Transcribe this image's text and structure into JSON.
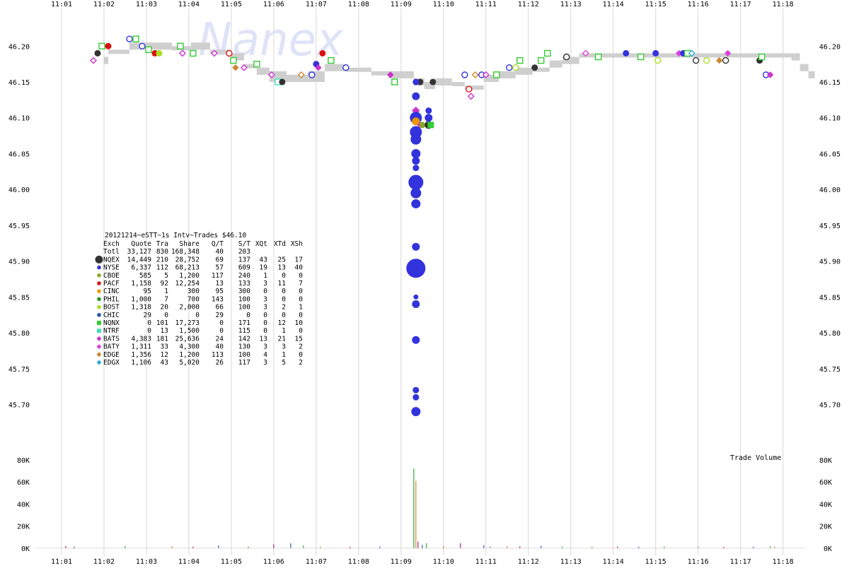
{
  "watermark": "Nanex",
  "chart_data": {
    "type": "scatter",
    "title": "20121214~eSTT~1s Intv~Trades $46.10",
    "x_ticks": [
      "11:01",
      "11:02",
      "11:03",
      "11:04",
      "11:05",
      "11:06",
      "11:07",
      "11:08",
      "11:09",
      "11:10",
      "11:11",
      "11:12",
      "11:13",
      "11:14",
      "11:15",
      "11:16",
      "11:17",
      "11:18"
    ],
    "price_ticks": [
      "46.20",
      "46.15",
      "46.10",
      "46.05",
      "46.00",
      "45.95",
      "45.90",
      "45.85",
      "45.80",
      "45.75",
      "45.70"
    ],
    "price_ylim": [
      45.665,
      46.22
    ],
    "volume_ticks": [
      "80K",
      "60K",
      "40K",
      "20K",
      "0K"
    ],
    "volume_ylim": [
      0,
      85000
    ],
    "volume_label": "Trade Volume",
    "grid": true,
    "legend_columns": [
      "Exch",
      "Quote",
      "Tra",
      "Share",
      "Q/T",
      "S/T",
      "XQt",
      "XTd",
      "XSh"
    ],
    "legend_rows": [
      {
        "exch": "Totl",
        "quote": "33,127",
        "tra": "830",
        "share": "168,348",
        "qt": "40",
        "st": "203",
        "xqt": "",
        "xtd": "",
        "xsh": "",
        "color": "",
        "shape": "none"
      },
      {
        "exch": "NQEX",
        "quote": "14,449",
        "tra": "210",
        "share": "28,752",
        "qt": "69",
        "st": "137",
        "xqt": "43",
        "xtd": "25",
        "xsh": "17",
        "color": "#333333",
        "shape": "circle-large"
      },
      {
        "exch": "NYSE",
        "quote": "6,337",
        "tra": "112",
        "share": "68,213",
        "qt": "57",
        "st": "609",
        "xqt": "19",
        "xtd": "13",
        "xsh": "40",
        "color": "#3333dd",
        "shape": "circle"
      },
      {
        "exch": "CBOE",
        "quote": "585",
        "tra": "5",
        "share": "1,200",
        "qt": "117",
        "st": "240",
        "xqt": "1",
        "xtd": "0",
        "xsh": "0",
        "color": "#88aa22",
        "shape": "circle"
      },
      {
        "exch": "PACF",
        "quote": "1,158",
        "tra": "92",
        "share": "12,254",
        "qt": "13",
        "st": "133",
        "xqt": "3",
        "xtd": "11",
        "xsh": "7",
        "color": "#dd1111",
        "shape": "circle"
      },
      {
        "exch": "CINC",
        "quote": "95",
        "tra": "1",
        "share": "300",
        "qt": "95",
        "st": "300",
        "xqt": "0",
        "xtd": "0",
        "xsh": "0",
        "color": "#ee9900",
        "shape": "circle"
      },
      {
        "exch": "PHIL",
        "quote": "1,000",
        "tra": "7",
        "share": "700",
        "qt": "143",
        "st": "100",
        "xqt": "3",
        "xtd": "0",
        "xsh": "0",
        "color": "#229922",
        "shape": "circle"
      },
      {
        "exch": "BOST",
        "quote": "1,318",
        "tra": "20",
        "share": "2,000",
        "qt": "66",
        "st": "100",
        "xqt": "3",
        "xtd": "2",
        "xsh": "1",
        "color": "#aadd22",
        "shape": "circle"
      },
      {
        "exch": "CHIC",
        "quote": "29",
        "tra": "0",
        "share": "0",
        "qt": "29",
        "st": "0",
        "xqt": "0",
        "xtd": "0",
        "xsh": "0",
        "color": "#2255aa",
        "shape": "circle"
      },
      {
        "exch": "NQNX",
        "quote": "0",
        "tra": "101",
        "share": "17,273",
        "qt": "0",
        "st": "171",
        "xqt": "0",
        "xtd": "12",
        "xsh": "10",
        "color": "#33cc33",
        "shape": "square"
      },
      {
        "exch": "NTRF",
        "quote": "0",
        "tra": "13",
        "share": "1,500",
        "qt": "0",
        "st": "115",
        "xqt": "0",
        "xtd": "1",
        "xsh": "0",
        "color": "#44ddbb",
        "shape": "square"
      },
      {
        "exch": "BATS",
        "quote": "4,383",
        "tra": "181",
        "share": "25,636",
        "qt": "24",
        "st": "142",
        "xqt": "13",
        "xtd": "21",
        "xsh": "15",
        "color": "#cc33cc",
        "shape": "diamond"
      },
      {
        "exch": "BATY",
        "quote": "1,311",
        "tra": "33",
        "share": "4,300",
        "qt": "40",
        "st": "130",
        "xqt": "3",
        "xtd": "3",
        "xsh": "2",
        "color": "#dd44dd",
        "shape": "diamond"
      },
      {
        "exch": "EDGE",
        "quote": "1,356",
        "tra": "12",
        "share": "1,200",
        "qt": "113",
        "st": "100",
        "xqt": "4",
        "xtd": "1",
        "xsh": "0",
        "color": "#cc8833",
        "shape": "diamond"
      },
      {
        "exch": "EDGX",
        "quote": "1,106",
        "tra": "43",
        "share": "5,020",
        "qt": "26",
        "st": "117",
        "xqt": "3",
        "xtd": "5",
        "xsh": "2",
        "color": "#33aadd",
        "shape": "diamond"
      }
    ],
    "nbbo_band": [
      [
        1.0,
        46.185,
        46.175
      ],
      [
        1.1,
        46.195,
        46.19
      ],
      [
        1.6,
        46.205,
        46.195
      ],
      [
        2.6,
        46.2,
        46.195
      ],
      [
        3.05,
        46.205,
        46.195
      ],
      [
        3.5,
        46.195,
        46.19
      ],
      [
        4.0,
        46.19,
        46.18
      ],
      [
        4.3,
        46.175,
        46.17
      ],
      [
        4.6,
        46.17,
        46.16
      ],
      [
        4.9,
        46.165,
        46.15
      ],
      [
        5.3,
        46.16,
        46.15
      ],
      [
        5.8,
        46.165,
        46.15
      ],
      [
        6.2,
        46.175,
        46.165
      ],
      [
        6.7,
        46.17,
        46.165
      ],
      [
        7.3,
        46.165,
        46.16
      ],
      [
        7.7,
        46.165,
        46.155
      ],
      [
        8.3,
        46.155,
        46.145
      ],
      [
        8.55,
        46.15,
        46.14
      ],
      [
        8.8,
        46.155,
        46.145
      ],
      [
        9.2,
        46.15,
        46.145
      ],
      [
        9.5,
        46.145,
        46.14
      ],
      [
        9.95,
        46.16,
        46.15
      ],
      [
        10.3,
        46.165,
        46.155
      ],
      [
        10.7,
        46.17,
        46.16
      ],
      [
        11.1,
        46.17,
        46.165
      ],
      [
        11.5,
        46.18,
        46.17
      ],
      [
        11.8,
        46.185,
        46.175
      ],
      [
        12.2,
        46.19,
        46.185
      ],
      [
        13.5,
        46.19,
        46.185
      ],
      [
        17.2,
        46.19,
        46.18
      ],
      [
        17.4,
        46.175,
        46.165
      ],
      [
        17.6,
        46.165,
        46.155
      ]
    ],
    "trades": [
      {
        "x": 0.75,
        "y": 46.18,
        "exch": "BATS",
        "open": true
      },
      {
        "x": 0.85,
        "y": 46.19,
        "exch": "NQEX",
        "open": false
      },
      {
        "x": 0.95,
        "y": 46.2,
        "exch": "NQNX",
        "open": true
      },
      {
        "x": 1.1,
        "y": 46.2,
        "exch": "PACF",
        "open": false
      },
      {
        "x": 1.6,
        "y": 46.21,
        "exch": "NYSE",
        "open": true
      },
      {
        "x": 1.75,
        "y": 46.21,
        "exch": "NQNX",
        "open": true
      },
      {
        "x": 1.9,
        "y": 46.2,
        "exch": "NYSE",
        "open": true
      },
      {
        "x": 2.05,
        "y": 46.195,
        "exch": "NQNX",
        "open": true
      },
      {
        "x": 2.2,
        "y": 46.19,
        "exch": "PACF",
        "open": false
      },
      {
        "x": 2.3,
        "y": 46.19,
        "exch": "BOST",
        "open": false
      },
      {
        "x": 2.8,
        "y": 46.2,
        "exch": "NQNX",
        "open": true
      },
      {
        "x": 2.85,
        "y": 46.19,
        "exch": "BATS",
        "open": true
      },
      {
        "x": 3.1,
        "y": 46.19,
        "exch": "NQNX",
        "open": true
      },
      {
        "x": 3.6,
        "y": 46.19,
        "exch": "BATS",
        "open": true
      },
      {
        "x": 3.95,
        "y": 46.19,
        "exch": "PACF",
        "open": true
      },
      {
        "x": 4.05,
        "y": 46.18,
        "exch": "NQNX",
        "open": true
      },
      {
        "x": 4.1,
        "y": 46.17,
        "exch": "EDGE",
        "open": false
      },
      {
        "x": 4.3,
        "y": 46.17,
        "exch": "BATS",
        "open": true
      },
      {
        "x": 4.6,
        "y": 46.175,
        "exch": "NQNX",
        "open": true
      },
      {
        "x": 4.95,
        "y": 46.16,
        "exch": "BATS",
        "open": true
      },
      {
        "x": 5.1,
        "y": 46.15,
        "exch": "NTRF",
        "open": true
      },
      {
        "x": 5.2,
        "y": 46.15,
        "exch": "NQEX",
        "open": false
      },
      {
        "x": 5.65,
        "y": 46.16,
        "exch": "EDGE",
        "open": true
      },
      {
        "x": 5.9,
        "y": 46.16,
        "exch": "NYSE",
        "open": true
      },
      {
        "x": 6.0,
        "y": 46.175,
        "exch": "NYSE",
        "open": false
      },
      {
        "x": 6.05,
        "y": 46.17,
        "exch": "BATS",
        "open": false
      },
      {
        "x": 6.15,
        "y": 46.19,
        "exch": "PACF",
        "open": false
      },
      {
        "x": 6.35,
        "y": 46.18,
        "exch": "NQNX",
        "open": true
      },
      {
        "x": 6.7,
        "y": 46.17,
        "exch": "NYSE",
        "open": true
      },
      {
        "x": 7.75,
        "y": 46.16,
        "exch": "BATS",
        "open": false
      },
      {
        "x": 7.85,
        "y": 46.15,
        "exch": "NQNX",
        "open": true
      },
      {
        "x": 8.45,
        "y": 46.15,
        "exch": "NQEX",
        "open": false
      },
      {
        "x": 8.75,
        "y": 46.15,
        "exch": "NQEX",
        "open": false
      },
      {
        "x": 9.5,
        "y": 46.16,
        "exch": "NYSE",
        "open": true
      },
      {
        "x": 9.6,
        "y": 46.14,
        "exch": "PACF",
        "open": true
      },
      {
        "x": 9.65,
        "y": 46.13,
        "exch": "BATS",
        "open": true
      },
      {
        "x": 9.75,
        "y": 46.16,
        "exch": "EDGE",
        "open": true
      },
      {
        "x": 9.9,
        "y": 46.16,
        "exch": "NYSE",
        "open": true
      },
      {
        "x": 10.0,
        "y": 46.16,
        "exch": "BATS",
        "open": true
      },
      {
        "x": 10.25,
        "y": 46.16,
        "exch": "NQNX",
        "open": true
      },
      {
        "x": 10.55,
        "y": 46.17,
        "exch": "NYSE",
        "open": true
      },
      {
        "x": 10.7,
        "y": 46.17,
        "exch": "BOST",
        "open": true
      },
      {
        "x": 10.8,
        "y": 46.18,
        "exch": "NQNX",
        "open": true
      },
      {
        "x": 11.15,
        "y": 46.17,
        "exch": "NQEX",
        "open": false
      },
      {
        "x": 11.3,
        "y": 46.18,
        "exch": "NQNX",
        "open": true
      },
      {
        "x": 11.45,
        "y": 46.19,
        "exch": "NQNX",
        "open": true
      },
      {
        "x": 11.9,
        "y": 46.185,
        "exch": "NQEX",
        "open": true
      },
      {
        "x": 12.35,
        "y": 46.19,
        "exch": "BATY",
        "open": true
      },
      {
        "x": 12.65,
        "y": 46.185,
        "exch": "NQNX",
        "open": true
      },
      {
        "x": 13.3,
        "y": 46.19,
        "exch": "NYSE",
        "open": false
      },
      {
        "x": 13.65,
        "y": 46.185,
        "exch": "NQNX",
        "open": true
      },
      {
        "x": 14.0,
        "y": 46.19,
        "exch": "NYSE",
        "open": false
      },
      {
        "x": 14.05,
        "y": 46.18,
        "exch": "BOST",
        "open": true
      },
      {
        "x": 14.55,
        "y": 46.19,
        "exch": "BATY",
        "open": false
      },
      {
        "x": 14.65,
        "y": 46.19,
        "exch": "NYSE",
        "open": false
      },
      {
        "x": 14.75,
        "y": 46.19,
        "exch": "NQNX",
        "open": true
      },
      {
        "x": 14.85,
        "y": 46.19,
        "exch": "EDGX",
        "open": true
      },
      {
        "x": 14.95,
        "y": 46.18,
        "exch": "NQEX",
        "open": true
      },
      {
        "x": 15.2,
        "y": 46.18,
        "exch": "BOST",
        "open": true
      },
      {
        "x": 15.5,
        "y": 46.18,
        "exch": "EDGE",
        "open": false
      },
      {
        "x": 15.65,
        "y": 46.18,
        "exch": "NQEX",
        "open": true
      },
      {
        "x": 15.7,
        "y": 46.19,
        "exch": "BATY",
        "open": false
      },
      {
        "x": 16.45,
        "y": 46.18,
        "exch": "NQEX",
        "open": false
      },
      {
        "x": 16.5,
        "y": 46.185,
        "exch": "NQNX",
        "open": true
      },
      {
        "x": 16.6,
        "y": 46.16,
        "exch": "NYSE",
        "open": true
      },
      {
        "x": 16.7,
        "y": 46.16,
        "exch": "BATS",
        "open": false
      }
    ],
    "crash_trades": [
      {
        "x": 8.35,
        "y": 46.15,
        "exch": "NYSE",
        "size": 4
      },
      {
        "x": 8.35,
        "y": 46.13,
        "exch": "NYSE",
        "size": 5
      },
      {
        "x": 8.35,
        "y": 46.11,
        "exch": "BATS",
        "size": 5
      },
      {
        "x": 8.35,
        "y": 46.1,
        "exch": "NYSE",
        "size": 8
      },
      {
        "x": 8.35,
        "y": 46.095,
        "exch": "CINC",
        "size": 5
      },
      {
        "x": 8.35,
        "y": 46.08,
        "exch": "NYSE",
        "size": 8
      },
      {
        "x": 8.35,
        "y": 46.07,
        "exch": "NYSE",
        "size": 7
      },
      {
        "x": 8.35,
        "y": 46.05,
        "exch": "NYSE",
        "size": 6
      },
      {
        "x": 8.35,
        "y": 46.04,
        "exch": "NYSE",
        "size": 5
      },
      {
        "x": 8.35,
        "y": 46.03,
        "exch": "NYSE",
        "size": 4
      },
      {
        "x": 8.35,
        "y": 46.01,
        "exch": "NYSE",
        "size": 10
      },
      {
        "x": 8.35,
        "y": 45.995,
        "exch": "NYSE",
        "size": 7
      },
      {
        "x": 8.35,
        "y": 45.98,
        "exch": "NYSE",
        "size": 6
      },
      {
        "x": 8.35,
        "y": 45.92,
        "exch": "NYSE",
        "size": 5
      },
      {
        "x": 8.35,
        "y": 45.89,
        "exch": "NYSE",
        "size": 13
      },
      {
        "x": 8.35,
        "y": 45.85,
        "exch": "NYSE",
        "size": 3
      },
      {
        "x": 8.35,
        "y": 45.84,
        "exch": "NYSE",
        "size": 5
      },
      {
        "x": 8.35,
        "y": 45.79,
        "exch": "NYSE",
        "size": 5
      },
      {
        "x": 8.35,
        "y": 45.72,
        "exch": "NYSE",
        "size": 4
      },
      {
        "x": 8.35,
        "y": 45.71,
        "exch": "NYSE",
        "size": 4
      },
      {
        "x": 8.35,
        "y": 45.69,
        "exch": "NYSE",
        "size": 6
      },
      {
        "x": 8.45,
        "y": 46.09,
        "exch": "BATS",
        "size": 4
      },
      {
        "x": 8.5,
        "y": 46.09,
        "exch": "CBOE",
        "size": 4
      },
      {
        "x": 8.65,
        "y": 46.09,
        "exch": "NQEX",
        "size": 5
      },
      {
        "x": 8.65,
        "y": 46.1,
        "exch": "NYSE",
        "size": 5
      },
      {
        "x": 8.65,
        "y": 46.11,
        "exch": "NYSE",
        "size": 4
      },
      {
        "x": 8.7,
        "y": 46.09,
        "exch": "NQNX",
        "size": 4
      }
    ],
    "volume_bars": [
      {
        "x": 0.1,
        "v": 2000
      },
      {
        "x": 0.3,
        "v": 1500
      },
      {
        "x": 1.5,
        "v": 2000
      },
      {
        "x": 2.6,
        "v": 1800
      },
      {
        "x": 3.1,
        "v": 1500
      },
      {
        "x": 3.7,
        "v": 2500
      },
      {
        "x": 4.4,
        "v": 1500
      },
      {
        "x": 5.0,
        "v": 1200
      },
      {
        "x": 5.0,
        "v": 3500
      },
      {
        "x": 5.4,
        "v": 4500
      },
      {
        "x": 5.7,
        "v": 2500
      },
      {
        "x": 6.1,
        "v": 1500
      },
      {
        "x": 6.8,
        "v": 1200
      },
      {
        "x": 7.5,
        "v": 1500
      },
      {
        "x": 8.3,
        "v": 72000
      },
      {
        "x": 8.35,
        "v": 61000
      },
      {
        "x": 8.4,
        "v": 6000
      },
      {
        "x": 8.5,
        "v": 3000
      },
      {
        "x": 8.6,
        "v": 4500
      },
      {
        "x": 9.0,
        "v": 2000
      },
      {
        "x": 9.4,
        "v": 4500
      },
      {
        "x": 9.95,
        "v": 2800
      },
      {
        "x": 10.1,
        "v": 1500
      },
      {
        "x": 10.5,
        "v": 2000
      },
      {
        "x": 10.8,
        "v": 1800
      },
      {
        "x": 11.3,
        "v": 2200
      },
      {
        "x": 11.8,
        "v": 1500
      },
      {
        "x": 12.5,
        "v": 1500
      },
      {
        "x": 13.1,
        "v": 1500
      },
      {
        "x": 13.6,
        "v": 1200
      },
      {
        "x": 14.2,
        "v": 1500
      },
      {
        "x": 15.0,
        "v": 1500
      },
      {
        "x": 15.6,
        "v": 1200
      },
      {
        "x": 16.3,
        "v": 1200
      },
      {
        "x": 16.7,
        "v": 1800
      },
      {
        "x": 16.8,
        "v": 1500
      }
    ]
  }
}
